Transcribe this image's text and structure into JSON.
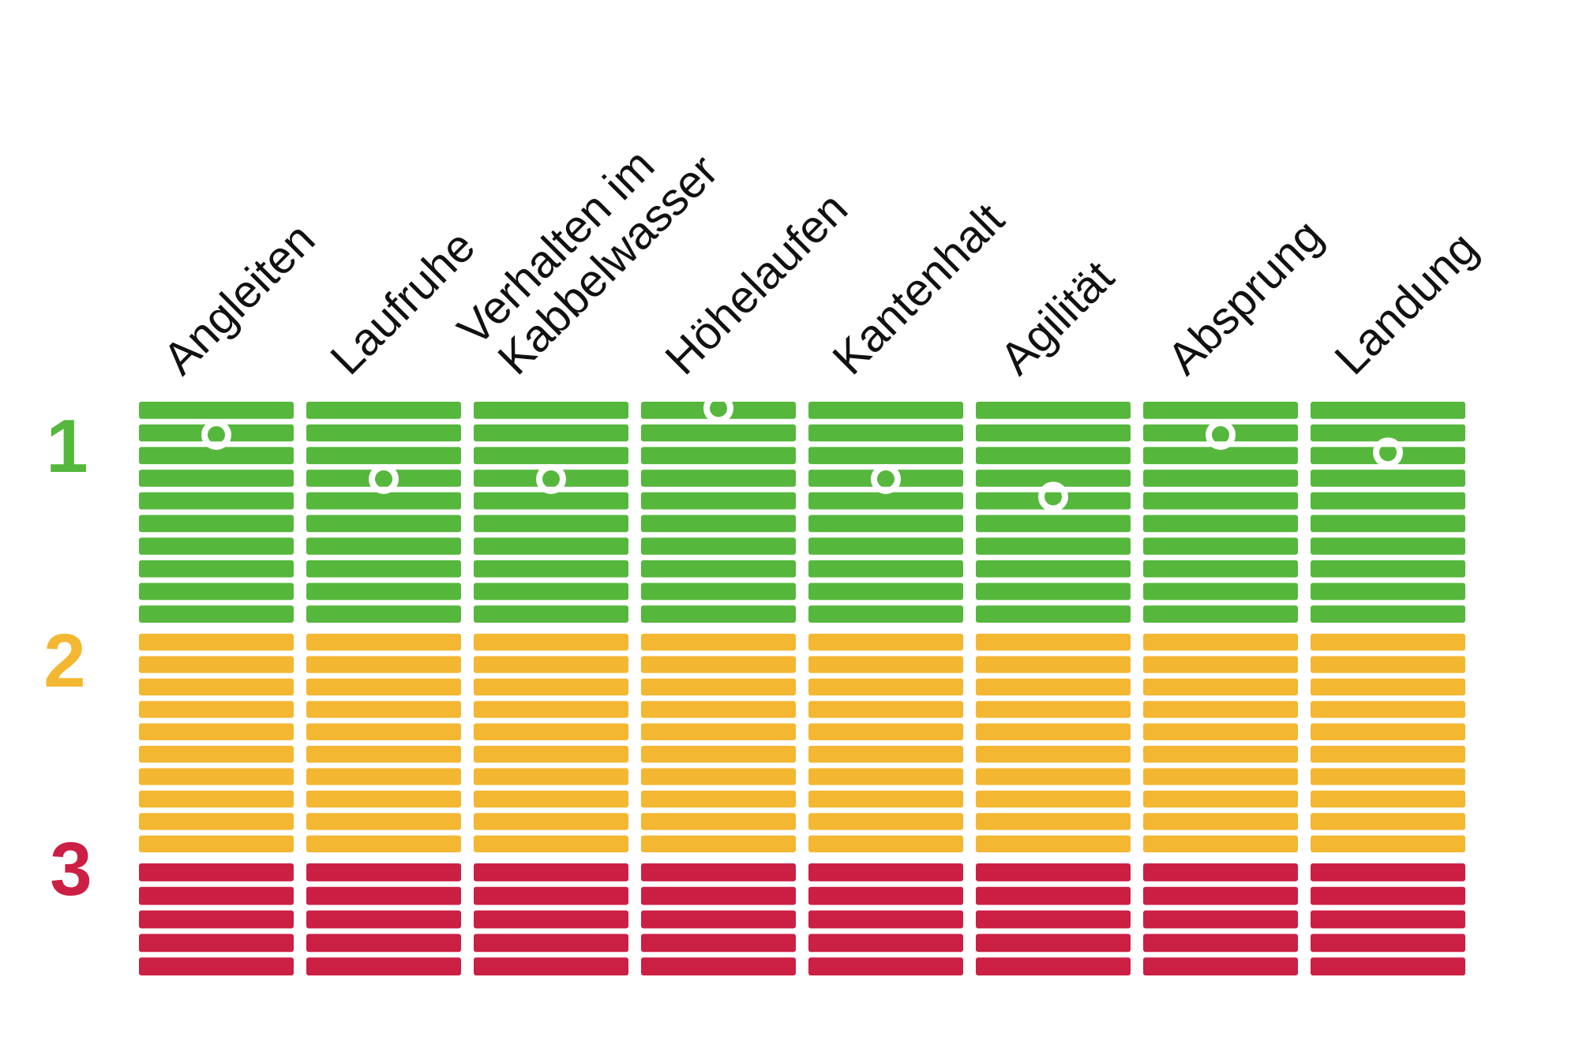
{
  "chart_data": {
    "type": "heatmap",
    "title": "",
    "categories": [
      [
        "Angleiten"
      ],
      [
        "Laufruhe"
      ],
      [
        "Verhalten im",
        "Kabbelwasser"
      ],
      [
        "Höhelaufen"
      ],
      [
        "Kantenhalt"
      ],
      [
        "Agilität"
      ],
      [
        "Absprung"
      ],
      [
        "Landung"
      ]
    ],
    "zones": [
      {
        "label": "1",
        "color": "#56b73d",
        "min": 1,
        "max": 2
      },
      {
        "label": "2",
        "color": "#f4b731",
        "min": 2,
        "max": 3
      },
      {
        "label": "3",
        "color": "#cc1f44",
        "min": 3,
        "max": 3.5
      }
    ],
    "scale": [
      1,
      3.5
    ],
    "series": [
      {
        "values": [
          1.15,
          1.35,
          1.35,
          1.03,
          1.35,
          1.43,
          1.15,
          1.23
        ]
      }
    ],
    "marker": "circle"
  }
}
